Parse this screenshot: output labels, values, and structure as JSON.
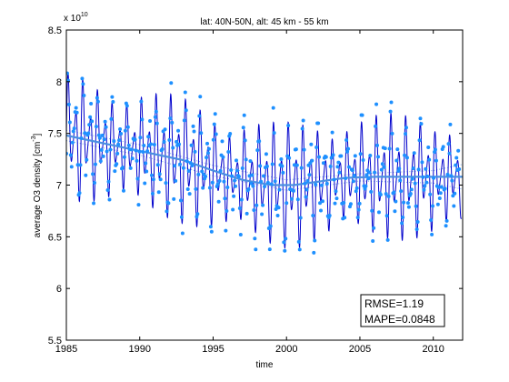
{
  "figure": {
    "title": "lat: 40N-50N, alt: 45 km - 55 km",
    "exponent_base": "x 10",
    "exponent_power": "10",
    "stats": {
      "rmse": "RMSE=1.19",
      "mape": "MAPE=0.0848"
    }
  },
  "chart_data": {
    "type": "line",
    "title": "lat: 40N-50N, alt: 45 km - 55 km",
    "xlabel": "time",
    "ylabel": "average O3 density [cm",
    "ylabel_superscript": "-3",
    "ylabel_suffix": "]",
    "y_multiplier_label": "x 10^10",
    "xlim": [
      1985,
      2012
    ],
    "ylim": [
      5.5,
      8.5
    ],
    "x_ticks": [
      1985,
      1990,
      1995,
      2000,
      2005,
      2010
    ],
    "x_tick_labels": [
      "1985",
      "1990",
      "1995",
      "2000",
      "2005",
      "2010"
    ],
    "y_ticks": [
      5.5,
      6,
      6.5,
      7,
      7.5,
      8,
      8.5
    ],
    "y_tick_labels": [
      "5.5",
      "6",
      "6.5",
      "7",
      "7.5",
      "8",
      "8.5"
    ],
    "grid": false,
    "series": [
      {
        "role": "modelled",
        "style": "thin dark blue line with seasonal oscillation",
        "color": "#0000cc",
        "mean_trend_follows": "trend",
        "seasonal_amplitude": 0.55,
        "period_years": 1
      },
      {
        "role": "observed",
        "style": "light blue dots, about 2 per month",
        "color": "#1e90ff",
        "x_range": [
          1985.0,
          2011.8
        ]
      },
      {
        "role": "trend",
        "style": "thick light blue line",
        "color": "#4a90e2",
        "x": [
          1985.0,
          1987.0,
          1989.0,
          1991.0,
          1993.0,
          1995.0,
          1997.0,
          1999.0,
          2000.5,
          2002.0,
          2004.0,
          2006.0,
          2008.0,
          2010.0,
          2012.0
        ],
        "y": [
          7.48,
          7.42,
          7.36,
          7.3,
          7.24,
          7.14,
          7.05,
          7.0,
          7.0,
          7.03,
          7.07,
          7.08,
          7.08,
          7.08,
          7.08
        ]
      },
      {
        "role": "trend upper band",
        "style": "thin dotted line",
        "color": "#7aa8e8",
        "x": [
          1985.0,
          1990.0,
          1995.0,
          2000.0,
          2005.0,
          2010.0,
          2012.0
        ],
        "y": [
          7.53,
          7.39,
          7.19,
          7.05,
          7.11,
          7.14,
          7.2
        ]
      },
      {
        "role": "trend lower band",
        "style": "thin dotted line",
        "color": "#7aa8e8",
        "x": [
          1985.0,
          1990.0,
          1995.0,
          2000.0,
          2005.0,
          2010.0,
          2012.0
        ],
        "y": [
          7.43,
          7.29,
          7.09,
          6.95,
          7.04,
          7.02,
          6.96
        ]
      }
    ]
  }
}
